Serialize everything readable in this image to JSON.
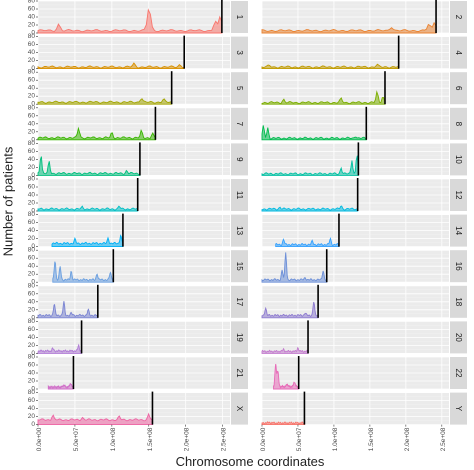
{
  "chart_data": {
    "type": "area",
    "xlabel": "Chromosome coordinates",
    "ylabel": "Number of patients",
    "ylim": [
      0,
      80
    ],
    "y_ticks": [
      "0",
      "20",
      "40",
      "60",
      "80"
    ],
    "xlim": [
      0,
      260000000
    ],
    "x_ticks": [
      0,
      50000000,
      100000000,
      150000000,
      200000000,
      250000000
    ],
    "x_tick_labels": [
      "0.0e+00",
      "5.0e+07",
      "1.0e+08",
      "1.5e+08",
      "2.0e+08",
      "2.5e+08"
    ],
    "grid": true,
    "facet_layout": "12 rows x 2 columns, strip labels on right",
    "chromosomes": [
      {
        "label": "1",
        "length": 249000000,
        "color": "#F8766D",
        "baseline": 6,
        "peaks": [
          {
            "x": 28000000,
            "y": 22
          },
          {
            "x": 150000000,
            "y": 55
          },
          {
            "x": 152000000,
            "y": 18
          },
          {
            "x": 240000000,
            "y": 30
          },
          {
            "x": 247000000,
            "y": 40
          }
        ]
      },
      {
        "label": "2",
        "length": 242000000,
        "color": "#EA8331",
        "baseline": 6,
        "peaks": [
          {
            "x": 180000000,
            "y": 16
          },
          {
            "x": 232000000,
            "y": 22
          },
          {
            "x": 240000000,
            "y": 28
          }
        ]
      },
      {
        "label": "3",
        "length": 198000000,
        "color": "#D89000",
        "baseline": 4,
        "peaks": [
          {
            "x": 130000000,
            "y": 12
          },
          {
            "x": 192000000,
            "y": 10
          }
        ]
      },
      {
        "label": "4",
        "length": 190000000,
        "color": "#C09B00",
        "baseline": 4,
        "peaks": [
          {
            "x": 10000000,
            "y": 8
          },
          {
            "x": 160000000,
            "y": 10
          }
        ]
      },
      {
        "label": "5",
        "length": 181000000,
        "color": "#A3A500",
        "baseline": 5,
        "peaks": [
          {
            "x": 140000000,
            "y": 16
          },
          {
            "x": 170000000,
            "y": 12
          }
        ]
      },
      {
        "label": "6",
        "length": 171000000,
        "color": "#7CAE00",
        "baseline": 4,
        "peaks": [
          {
            "x": 30000000,
            "y": 12
          },
          {
            "x": 110000000,
            "y": 14
          },
          {
            "x": 160000000,
            "y": 30
          },
          {
            "x": 168000000,
            "y": 20
          }
        ]
      },
      {
        "label": "7",
        "length": 159000000,
        "color": "#39B600",
        "baseline": 5,
        "peaks": [
          {
            "x": 55000000,
            "y": 30
          },
          {
            "x": 100000000,
            "y": 18
          },
          {
            "x": 140000000,
            "y": 22
          },
          {
            "x": 155000000,
            "y": 16
          }
        ]
      },
      {
        "label": "8",
        "length": 145000000,
        "color": "#00BB4E",
        "baseline": 4,
        "peaks": [
          {
            "x": 2000000,
            "y": 35
          },
          {
            "x": 8000000,
            "y": 30
          },
          {
            "x": 130000000,
            "y": 10
          }
        ]
      },
      {
        "label": "9",
        "length": 138000000,
        "color": "#00BF7D",
        "baseline": 5,
        "peaks": [
          {
            "x": 4000000,
            "y": 55
          },
          {
            "x": 15000000,
            "y": 35
          },
          {
            "x": 120000000,
            "y": 12
          }
        ]
      },
      {
        "label": "10",
        "length": 134000000,
        "color": "#00C1A3",
        "baseline": 4,
        "peaks": [
          {
            "x": 110000000,
            "y": 20
          },
          {
            "x": 125000000,
            "y": 40
          },
          {
            "x": 132000000,
            "y": 55
          }
        ]
      },
      {
        "label": "11",
        "length": 135000000,
        "color": "#00BFC4",
        "baseline": 5,
        "peaks": [
          {
            "x": 60000000,
            "y": 10
          },
          {
            "x": 110000000,
            "y": 12
          }
        ]
      },
      {
        "label": "12",
        "length": 133000000,
        "color": "#00BAE0",
        "baseline": 5,
        "peaks": [
          {
            "x": 25000000,
            "y": 10
          },
          {
            "x": 110000000,
            "y": 14
          }
        ]
      },
      {
        "label": "13",
        "length": 115000000,
        "color": "#00B0F6",
        "baseline": 8,
        "start": 19000000,
        "peaks": [
          {
            "x": 50000000,
            "y": 18
          },
          {
            "x": 95000000,
            "y": 22
          },
          {
            "x": 112000000,
            "y": 30
          }
        ]
      },
      {
        "label": "14",
        "length": 107000000,
        "color": "#35A2FF",
        "baseline": 5,
        "start": 19000000,
        "peaks": [
          {
            "x": 30000000,
            "y": 18
          },
          {
            "x": 70000000,
            "y": 14
          },
          {
            "x": 95000000,
            "y": 20
          }
        ]
      },
      {
        "label": "15",
        "length": 102000000,
        "color": "#6A9FE0",
        "baseline": 6,
        "start": 20000000,
        "peaks": [
          {
            "x": 23000000,
            "y": 55
          },
          {
            "x": 30000000,
            "y": 40
          },
          {
            "x": 45000000,
            "y": 28
          },
          {
            "x": 80000000,
            "y": 22
          },
          {
            "x": 98000000,
            "y": 25
          }
        ]
      },
      {
        "label": "16",
        "length": 90000000,
        "color": "#6C8FD8",
        "baseline": 6,
        "peaks": [
          {
            "x": 28000000,
            "y": 30
          },
          {
            "x": 33000000,
            "y": 75
          },
          {
            "x": 60000000,
            "y": 12
          },
          {
            "x": 85000000,
            "y": 30
          }
        ]
      },
      {
        "label": "17",
        "length": 81000000,
        "color": "#7A84D2",
        "baseline": 6,
        "peaks": [
          {
            "x": 22000000,
            "y": 35
          },
          {
            "x": 35000000,
            "y": 40
          },
          {
            "x": 45000000,
            "y": 12
          },
          {
            "x": 68000000,
            "y": 20
          }
        ]
      },
      {
        "label": "18",
        "length": 78000000,
        "color": "#8E7BD0",
        "baseline": 6,
        "peaks": [
          {
            "x": 5000000,
            "y": 25
          },
          {
            "x": 60000000,
            "y": 12
          },
          {
            "x": 72000000,
            "y": 40
          }
        ]
      },
      {
        "label": "19",
        "length": 59000000,
        "color": "#B07BD6",
        "baseline": 6,
        "peaks": [
          {
            "x": 20000000,
            "y": 12
          },
          {
            "x": 55000000,
            "y": 20
          }
        ]
      },
      {
        "label": "20",
        "length": 64000000,
        "color": "#C37BCE",
        "baseline": 5,
        "peaks": [
          {
            "x": 30000000,
            "y": 10
          },
          {
            "x": 50000000,
            "y": 14
          }
        ]
      },
      {
        "label": "21",
        "length": 48000000,
        "color": "#D06FC8",
        "baseline": 5,
        "start": 14000000,
        "peaks": [
          {
            "x": 35000000,
            "y": 10
          },
          {
            "x": 44000000,
            "y": 14
          }
        ]
      },
      {
        "label": "22",
        "length": 51000000,
        "color": "#E76BB8",
        "baseline": 6,
        "start": 16000000,
        "peaks": [
          {
            "x": 19000000,
            "y": 60
          },
          {
            "x": 22000000,
            "y": 45
          },
          {
            "x": 35000000,
            "y": 12
          },
          {
            "x": 45000000,
            "y": 18
          }
        ]
      },
      {
        "label": "X",
        "length": 155000000,
        "color": "#EE64A3",
        "baseline": 12,
        "peaks": [
          {
            "x": 20000000,
            "y": 24
          },
          {
            "x": 60000000,
            "y": 18
          },
          {
            "x": 110000000,
            "y": 20
          },
          {
            "x": 150000000,
            "y": 26
          }
        ]
      },
      {
        "label": "Y",
        "length": 59000000,
        "color": "#F8766D",
        "baseline": 4,
        "peaks": [
          {
            "x": 10000000,
            "y": 6
          }
        ]
      }
    ]
  }
}
